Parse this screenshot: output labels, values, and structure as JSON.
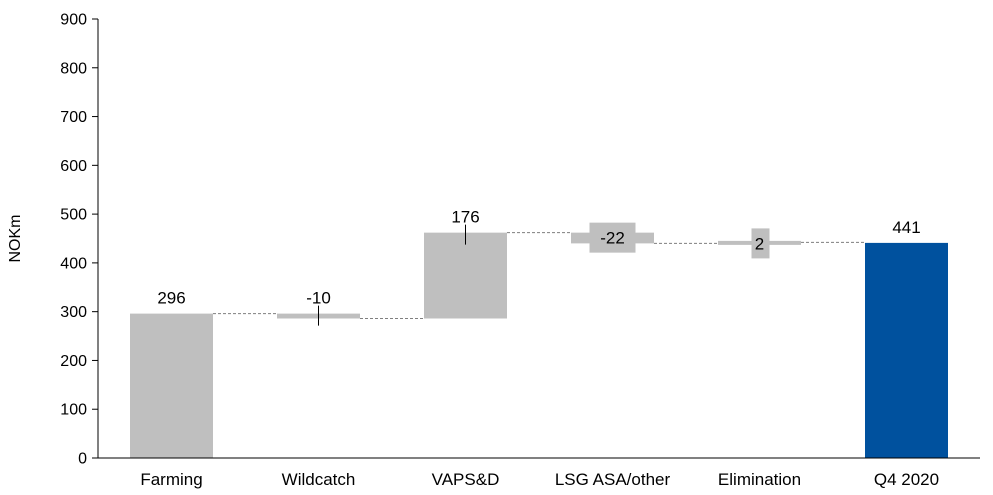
{
  "chart_data": {
    "type": "bar",
    "subtype": "waterfall",
    "title": "",
    "xlabel": "",
    "ylabel": "NOKm",
    "ylim": [
      0,
      900
    ],
    "yticks": [
      0,
      100,
      200,
      300,
      400,
      500,
      600,
      700,
      800,
      900
    ],
    "grid": false,
    "categories": [
      "Farming",
      "Wildcatch",
      "VAPS&D",
      "LSG ASA/other",
      "Elimination",
      "Q4 2020"
    ],
    "values": [
      296,
      -10,
      176,
      -22,
      2,
      441
    ],
    "data_labels": [
      "296",
      "-10",
      "176",
      "-22",
      "2",
      "441"
    ],
    "bar_kinds": [
      "total",
      "delta",
      "delta",
      "delta",
      "delta",
      "total"
    ],
    "colors": {
      "delta": "#bfbfbf",
      "start": "#bfbfbf",
      "total": "#00519e",
      "connector": "#7f7f7f",
      "axis": "#000000"
    }
  }
}
